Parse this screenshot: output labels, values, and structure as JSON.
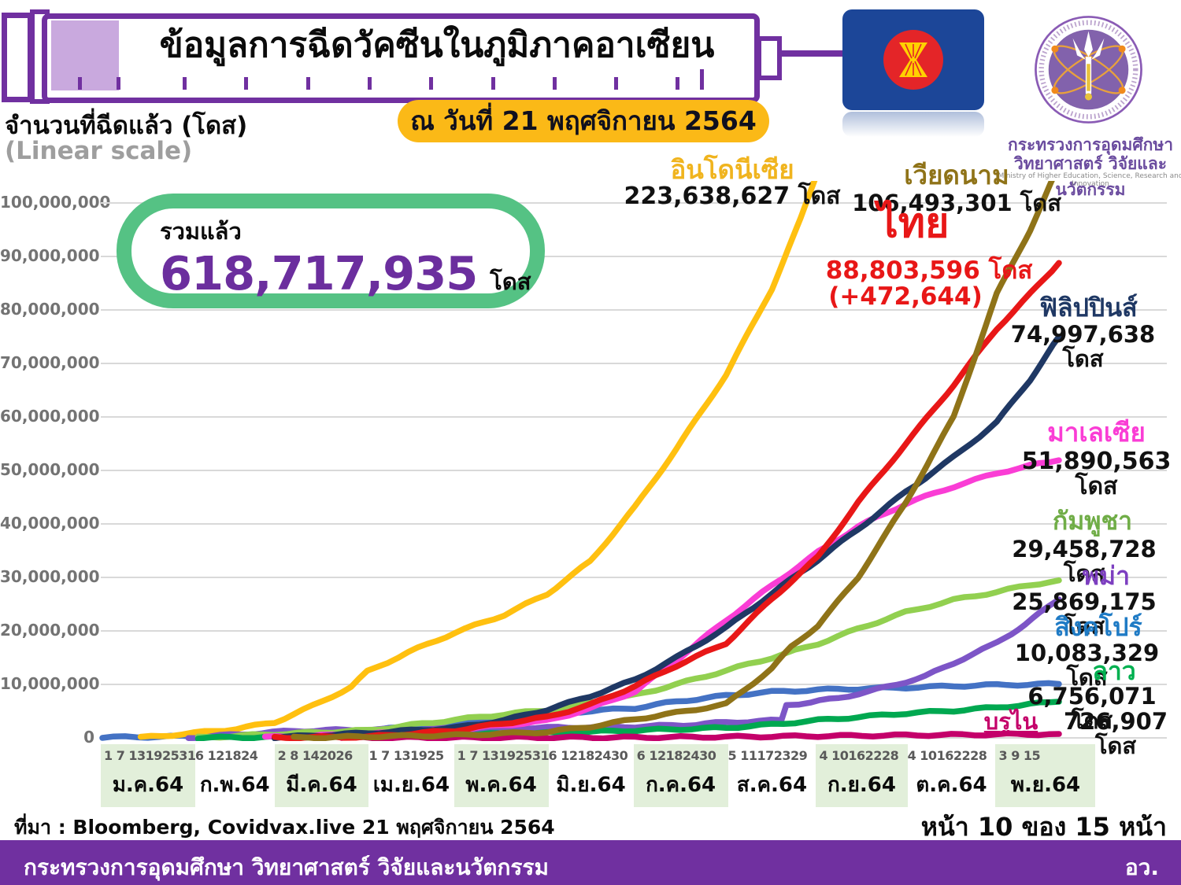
{
  "title": "ข้อมูลการฉีดวัคซีนในภูมิภาคอาเซียน",
  "date_badge": "ณ วันที่ 21 พฤศจิกายน 2564",
  "axis_title": "จำนวนที่ฉีดแล้ว (โดส)",
  "axis_subtitle": "(Linear scale)",
  "total": {
    "label": "รวมแล้ว",
    "value": "618,717,935",
    "unit": "โดส"
  },
  "ministry_logo": {
    "line1": "กระทรวงการอุดมศึกษา",
    "line2": "วิทยาศาสตร์ วิจัยและนวัตกรรม",
    "line3": "Ministry of Higher Education, Science, Research and Innovation"
  },
  "icons": {
    "syringe": "syringe-graphic",
    "asean_flag": "asean-flag",
    "ministry_seal": "ministry-seal"
  },
  "source_line": "ที่มา : Bloomberg, Covidvax.live 21 พฤศจิกายน 2564",
  "page_indicator": "หน้า 10 ของ 15 หน้า",
  "footer": {
    "left": "กระทรวงการอุดมศึกษา วิทยาศาสตร์ วิจัยและนวัตกรรม",
    "right": "อว."
  },
  "chart_data": {
    "type": "line",
    "title": "ข้อมูลการฉีดวัคซีนในภูมิภาคอาเซียน",
    "ylabel": "จำนวนที่ฉีดแล้ว (โดส)",
    "scale": "linear",
    "ylim": [
      0,
      100000000
    ],
    "grid": true,
    "y_ticks": [
      "0",
      "10,000,000",
      "20,000,000",
      "30,000,000",
      "40,000,000",
      "50,000,000",
      "60,000,000",
      "70,000,000",
      "80,000,000",
      "90,000,000",
      "100,000,000"
    ],
    "x_months": [
      {
        "label": "ม.ค.64",
        "days": "1 7 13192531",
        "band": true
      },
      {
        "label": "ก.พ.64",
        "days": "6 121824",
        "band": false
      },
      {
        "label": "มี.ค.64",
        "days": "2 8 142026",
        "band": true
      },
      {
        "label": "เม.ย.64",
        "days": "1 7 131925",
        "band": false
      },
      {
        "label": "พ.ค.64",
        "days": "1 7 13192531",
        "band": true
      },
      {
        "label": "มิ.ย.64",
        "days": "6 12182430",
        "band": false
      },
      {
        "label": "ก.ค.64",
        "days": "6 12182430",
        "band": true
      },
      {
        "label": "ส.ค.64",
        "days": "5 11172329",
        "band": false
      },
      {
        "label": "ก.ย.64",
        "days": "4 10162228",
        "band": true
      },
      {
        "label": "ต.ค.64",
        "days": "4 10162228",
        "band": false
      },
      {
        "label": "พ.ย.64",
        "days": "3 9 15",
        "band": true
      }
    ],
    "series": [
      {
        "name": "สิงคโปร์",
        "value_label": "10,083,329 โดส",
        "final_value": 10083329,
        "color": "#4472C4",
        "label_color": "#1F7BC5",
        "points": [
          [
            0,
            0.1
          ],
          [
            0.095,
            0.3
          ],
          [
            0.18,
            0.7
          ],
          [
            0.277,
            1.4
          ],
          [
            0.369,
            2.7
          ],
          [
            0.465,
            4.3
          ],
          [
            0.5,
            4.9
          ],
          [
            0.557,
            5.6
          ],
          [
            0.6,
            6.8
          ],
          [
            0.652,
            7.9
          ],
          [
            0.7,
            8.6
          ],
          [
            0.748,
            9.0
          ],
          [
            0.79,
            9.2
          ],
          [
            0.84,
            9.4
          ],
          [
            0.89,
            9.7
          ],
          [
            0.935,
            9.9
          ],
          [
            1,
            10.08
          ]
        ]
      },
      {
        "name": "อินโดนีเซีย",
        "value_label": "223,638,627 โดส",
        "final_value": 223638627,
        "color": "#FFC010",
        "label_color": "#F0B41E",
        "points": [
          [
            0.04,
            0.05
          ],
          [
            0.095,
            0.9
          ],
          [
            0.14,
            1.7
          ],
          [
            0.18,
            2.9
          ],
          [
            0.22,
            6
          ],
          [
            0.26,
            9.5
          ],
          [
            0.277,
            12.4
          ],
          [
            0.32,
            16
          ],
          [
            0.369,
            19.7
          ],
          [
            0.42,
            23
          ],
          [
            0.465,
            26.9
          ],
          [
            0.51,
            33
          ],
          [
            0.557,
            43.2
          ],
          [
            0.6,
            54
          ],
          [
            0.652,
            67.9
          ],
          [
            0.7,
            84
          ],
          [
            0.73,
            97
          ],
          [
            0.76,
            112
          ]
        ]
      },
      {
        "name": "พม่า",
        "value_label": "25,869,175 โดส",
        "final_value": 25869175,
        "color": "#7D55C7",
        "label_color": "#7D3FC0",
        "points": [
          [
            0.09,
            0.05
          ],
          [
            0.2,
            1.3
          ],
          [
            0.277,
            1.55
          ],
          [
            0.369,
            1.7
          ],
          [
            0.465,
            1.9
          ],
          [
            0.557,
            2.1
          ],
          [
            0.62,
            2.5
          ],
          [
            0.652,
            2.9
          ],
          [
            0.71,
            3.3
          ],
          [
            0.715,
            6.2
          ],
          [
            0.74,
            6.6
          ],
          [
            0.77,
            7.5
          ],
          [
            0.8,
            8.6
          ],
          [
            0.83,
            10
          ],
          [
            0.86,
            11.5
          ],
          [
            0.89,
            14
          ],
          [
            0.92,
            16.5
          ],
          [
            0.935,
            17.8
          ],
          [
            0.95,
            19.5
          ],
          [
            0.965,
            21.3
          ],
          [
            0.98,
            23.3
          ],
          [
            1,
            25.87
          ]
        ]
      },
      {
        "name": "กัมพูชา",
        "value_label": "29,458,728 โดส",
        "final_value": 29458728,
        "color": "#92D050",
        "label_color": "#70AD47",
        "points": [
          [
            0.1,
            0.05
          ],
          [
            0.18,
            0.7
          ],
          [
            0.277,
            1.4
          ],
          [
            0.369,
            3.4
          ],
          [
            0.42,
            4.4
          ],
          [
            0.465,
            5.2
          ],
          [
            0.51,
            6.6
          ],
          [
            0.557,
            8
          ],
          [
            0.6,
            10
          ],
          [
            0.652,
            12.6
          ],
          [
            0.7,
            15
          ],
          [
            0.748,
            17.6
          ],
          [
            0.79,
            20.4
          ],
          [
            0.84,
            23.5
          ],
          [
            0.89,
            25.8
          ],
          [
            0.935,
            27.3
          ],
          [
            0.97,
            28.6
          ],
          [
            1,
            29.46
          ]
        ]
      },
      {
        "name": "ลาว",
        "value_label": "6,756,071 โดส",
        "final_value": 6756071,
        "color": "#00A850",
        "label_color": "#00B050",
        "points": [
          [
            0.1,
            0.03
          ],
          [
            0.277,
            0.3
          ],
          [
            0.369,
            0.6
          ],
          [
            0.465,
            0.9
          ],
          [
            0.557,
            1.4
          ],
          [
            0.652,
            1.9
          ],
          [
            0.7,
            2.5
          ],
          [
            0.748,
            3.3
          ],
          [
            0.79,
            3.9
          ],
          [
            0.84,
            4.6
          ],
          [
            0.89,
            5.1
          ],
          [
            0.935,
            5.7
          ],
          [
            0.97,
            6.3
          ],
          [
            1,
            6.76
          ]
        ]
      },
      {
        "name": "บรูไน",
        "value_label": "726,907 โดส",
        "final_value": 726907,
        "color": "#C4006A",
        "label_color": "#C4006A",
        "points": [
          [
            0.25,
            0.02
          ],
          [
            0.4,
            0.05
          ],
          [
            0.557,
            0.09
          ],
          [
            0.652,
            0.2
          ],
          [
            0.748,
            0.35
          ],
          [
            0.84,
            0.5
          ],
          [
            0.935,
            0.64
          ],
          [
            1,
            0.73
          ]
        ]
      },
      {
        "name": "มาเลเซีย",
        "value_label": "51,890,563",
        "value_label2": "โดส",
        "final_value": 51890563,
        "color": "#FA3DD5",
        "label_color": "#FA3DD5",
        "points": [
          [
            0.17,
            0.1
          ],
          [
            0.277,
            0.7
          ],
          [
            0.369,
            1.5
          ],
          [
            0.465,
            3.2
          ],
          [
            0.51,
            5.5
          ],
          [
            0.557,
            8.7
          ],
          [
            0.6,
            14.5
          ],
          [
            0.652,
            22
          ],
          [
            0.7,
            28.5
          ],
          [
            0.748,
            34.7
          ],
          [
            0.79,
            39.5
          ],
          [
            0.84,
            43.8
          ],
          [
            0.89,
            47
          ],
          [
            0.935,
            49.5
          ],
          [
            0.97,
            50.9
          ],
          [
            1,
            51.89
          ]
        ]
      },
      {
        "name": "ฟิลิปปินส์",
        "value_label": "74,997,638 โดส",
        "final_value": 74997638,
        "color": "#1F3864",
        "label_color": "#1F3864",
        "points": [
          [
            0.18,
            0.1
          ],
          [
            0.277,
            0.9
          ],
          [
            0.369,
            1.9
          ],
          [
            0.42,
            3.3
          ],
          [
            0.465,
            5.3
          ],
          [
            0.51,
            7.8
          ],
          [
            0.557,
            10.9
          ],
          [
            0.6,
            15
          ],
          [
            0.652,
            20.6
          ],
          [
            0.7,
            27
          ],
          [
            0.748,
            33.3
          ],
          [
            0.79,
            39
          ],
          [
            0.84,
            46
          ],
          [
            0.89,
            52.5
          ],
          [
            0.935,
            59
          ],
          [
            0.97,
            67
          ],
          [
            1,
            75.0
          ]
        ]
      },
      {
        "name": "ไทย",
        "value_label": "88,803,596 โดส",
        "delta_label": "(+472,644)",
        "final_value": 88803596,
        "color": "#E81717",
        "label_color": "#E81717",
        "points": [
          [
            0.18,
            0.06
          ],
          [
            0.277,
            0.2
          ],
          [
            0.369,
            1.4
          ],
          [
            0.465,
            3.9
          ],
          [
            0.51,
            6.2
          ],
          [
            0.557,
            9.7
          ],
          [
            0.6,
            13.5
          ],
          [
            0.652,
            17.7
          ],
          [
            0.7,
            26
          ],
          [
            0.748,
            33.8
          ],
          [
            0.79,
            44
          ],
          [
            0.84,
            55
          ],
          [
            0.89,
            66
          ],
          [
            0.935,
            76.5
          ],
          [
            0.97,
            83
          ],
          [
            1,
            88.8
          ]
        ]
      },
      {
        "name": "เวียดนาม",
        "value_label": "106,493,301 โดส",
        "final_value": 106493301,
        "color": "#8F7318",
        "label_color": "#8F7318",
        "points": [
          [
            0.2,
            0.03
          ],
          [
            0.369,
            0.5
          ],
          [
            0.465,
            1.1
          ],
          [
            0.51,
            2.1
          ],
          [
            0.557,
            3.5
          ],
          [
            0.6,
            4.7
          ],
          [
            0.652,
            6.3
          ],
          [
            0.7,
            13
          ],
          [
            0.72,
            17
          ],
          [
            0.748,
            21
          ],
          [
            0.79,
            30
          ],
          [
            0.84,
            44
          ],
          [
            0.89,
            60
          ],
          [
            0.935,
            83
          ],
          [
            0.97,
            95
          ],
          [
            1,
            107
          ]
        ]
      }
    ]
  }
}
